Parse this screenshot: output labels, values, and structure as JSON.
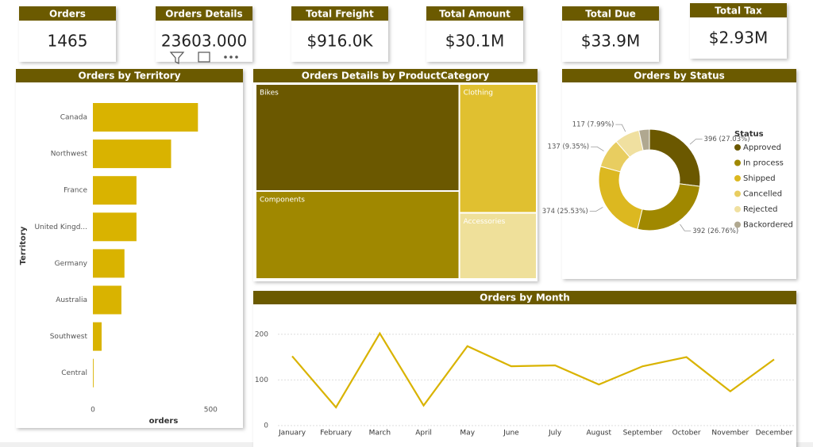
{
  "cards": [
    {
      "title": "Orders",
      "value": "1465"
    },
    {
      "title": "Orders Details",
      "value": "23603.000"
    },
    {
      "title": "Total Freight",
      "value": "$916.0K"
    },
    {
      "title": "Total Amount",
      "value": "$30.1M"
    },
    {
      "title": "Total Due",
      "value": "$33.9M"
    },
    {
      "title": "Total Tax",
      "value": "$2.93M"
    }
  ],
  "chart_data": [
    {
      "type": "bar",
      "orientation": "horizontal",
      "title": "Orders by Territory",
      "x_label": "orders",
      "y_label": "Territory",
      "categories": [
        "Canada",
        "Northwest",
        "France",
        "United Kingd...",
        "Germany",
        "Australia",
        "Southwest",
        "Central"
      ],
      "values": [
        446,
        332,
        185,
        185,
        134,
        121,
        37,
        3
      ],
      "color": "#d9b300",
      "xlim": [
        0,
        600
      ],
      "xticks": [
        0,
        500
      ]
    },
    {
      "type": "treemap",
      "title": "Orders Details by ProductCategory",
      "categories": [
        "Bikes",
        "Components",
        "Clothing",
        "Accessories"
      ],
      "values": [
        9388,
        7719,
        4292,
        2204
      ],
      "colors": [
        "#6b5800",
        "#a08800",
        "#e0c030",
        "#efe09a"
      ]
    },
    {
      "type": "pie",
      "donut": true,
      "title": "Orders by Status",
      "legend_title": "Status",
      "categories": [
        "Approved",
        "In process",
        "Shipped",
        "Cancelled",
        "Rejected",
        "Backordered"
      ],
      "values": [
        396,
        392,
        374,
        137,
        117,
        49
      ],
      "value_labels": [
        "396 (27.03%)",
        "392 (26.76%)",
        "374 (25.53%)",
        "137 (9.35%)",
        "117 (7.99%)",
        null
      ],
      "colors": [
        "#6b5800",
        "#a08800",
        "#dcb820",
        "#e8cd60",
        "#f0e0a0",
        "#b0a890"
      ]
    },
    {
      "type": "line",
      "title": "Orders by Month",
      "categories": [
        "January",
        "February",
        "March",
        "April",
        "May",
        "June",
        "July",
        "August",
        "September",
        "October",
        "November",
        "December"
      ],
      "values": [
        152,
        40,
        202,
        44,
        174,
        130,
        132,
        90,
        130,
        150,
        75,
        145
      ],
      "color": "#d9b300",
      "ylim": [
        0,
        250
      ],
      "yticks": [
        0,
        100,
        200
      ],
      "grid": true
    }
  ]
}
